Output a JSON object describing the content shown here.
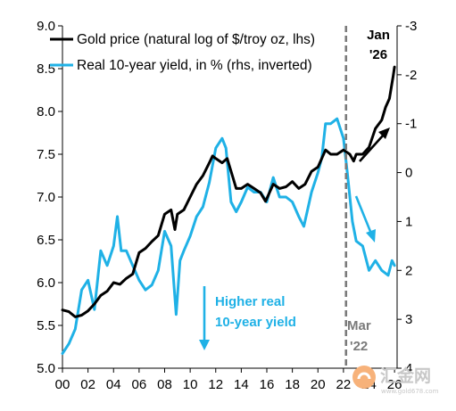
{
  "chart_data": {
    "type": "line",
    "title": "",
    "xlim": [
      2000,
      2026.2
    ],
    "x_tick_labels": [
      "00",
      "02",
      "04",
      "06",
      "08",
      "10",
      "12",
      "14",
      "16",
      "18",
      "20",
      "22",
      "24",
      "26"
    ],
    "y_left": {
      "lim": [
        5.0,
        9.0
      ],
      "ticks": [
        "5.0",
        "5.5",
        "6.0",
        "6.5",
        "7.0",
        "7.5",
        "8.0",
        "8.5",
        "9.0"
      ]
    },
    "y_right": {
      "lim": [
        -3,
        4
      ],
      "inverted": true,
      "ticks": [
        "-3",
        "-2",
        "-1",
        "0",
        "1",
        "2",
        "3",
        "4"
      ]
    },
    "legend_position": "top-center",
    "series": [
      {
        "name": "Gold price (natural log of $/troy oz, lhs)",
        "axis": "left",
        "color": "#000000",
        "points": [
          [
            2000.0,
            5.68
          ],
          [
            2000.5,
            5.66
          ],
          [
            2001.0,
            5.6
          ],
          [
            2001.5,
            5.62
          ],
          [
            2002.0,
            5.67
          ],
          [
            2002.5,
            5.75
          ],
          [
            2003.0,
            5.85
          ],
          [
            2003.5,
            5.9
          ],
          [
            2004.0,
            6.0
          ],
          [
            2004.5,
            5.98
          ],
          [
            2005.0,
            6.05
          ],
          [
            2005.5,
            6.1
          ],
          [
            2006.0,
            6.35
          ],
          [
            2006.5,
            6.4
          ],
          [
            2007.0,
            6.48
          ],
          [
            2007.5,
            6.55
          ],
          [
            2008.0,
            6.8
          ],
          [
            2008.5,
            6.85
          ],
          [
            2008.8,
            6.62
          ],
          [
            2009.0,
            6.8
          ],
          [
            2009.5,
            6.85
          ],
          [
            2010.0,
            7.0
          ],
          [
            2010.5,
            7.15
          ],
          [
            2011.0,
            7.25
          ],
          [
            2011.5,
            7.4
          ],
          [
            2011.75,
            7.48
          ],
          [
            2012.0,
            7.45
          ],
          [
            2012.5,
            7.4
          ],
          [
            2012.9,
            7.45
          ],
          [
            2013.3,
            7.25
          ],
          [
            2013.6,
            7.1
          ],
          [
            2014.0,
            7.1
          ],
          [
            2014.5,
            7.15
          ],
          [
            2015.0,
            7.1
          ],
          [
            2015.5,
            7.05
          ],
          [
            2015.9,
            6.95
          ],
          [
            2016.5,
            7.15
          ],
          [
            2017.0,
            7.1
          ],
          [
            2017.5,
            7.12
          ],
          [
            2018.0,
            7.18
          ],
          [
            2018.5,
            7.1
          ],
          [
            2019.0,
            7.15
          ],
          [
            2019.5,
            7.3
          ],
          [
            2020.0,
            7.35
          ],
          [
            2020.6,
            7.55
          ],
          [
            2021.0,
            7.5
          ],
          [
            2021.5,
            7.5
          ],
          [
            2022.0,
            7.55
          ],
          [
            2022.5,
            7.5
          ],
          [
            2022.8,
            7.42
          ],
          [
            2023.0,
            7.5
          ],
          [
            2023.5,
            7.5
          ],
          [
            2024.0,
            7.58
          ],
          [
            2024.5,
            7.8
          ],
          [
            2025.0,
            7.9
          ],
          [
            2025.3,
            8.05
          ],
          [
            2025.6,
            8.15
          ],
          [
            2025.9,
            8.42
          ],
          [
            2026.0,
            8.52
          ]
        ]
      },
      {
        "name": "Real 10-year yield, in % (rhs, inverted)",
        "axis": "right",
        "color": "#1fb1e6",
        "points": [
          [
            2000.0,
            3.7
          ],
          [
            2000.5,
            3.5
          ],
          [
            2001.0,
            3.2
          ],
          [
            2001.5,
            2.4
          ],
          [
            2002.0,
            2.2
          ],
          [
            2002.5,
            2.8
          ],
          [
            2003.0,
            1.6
          ],
          [
            2003.5,
            1.9
          ],
          [
            2004.0,
            1.5
          ],
          [
            2004.3,
            0.9
          ],
          [
            2004.6,
            1.6
          ],
          [
            2005.0,
            1.6
          ],
          [
            2005.5,
            1.9
          ],
          [
            2006.0,
            2.2
          ],
          [
            2006.5,
            2.4
          ],
          [
            2007.0,
            2.3
          ],
          [
            2007.5,
            2.0
          ],
          [
            2008.0,
            1.2
          ],
          [
            2008.5,
            1.5
          ],
          [
            2008.9,
            2.9
          ],
          [
            2009.2,
            1.8
          ],
          [
            2009.5,
            1.6
          ],
          [
            2010.0,
            1.3
          ],
          [
            2010.5,
            0.9
          ],
          [
            2011.0,
            0.7
          ],
          [
            2011.5,
            0.2
          ],
          [
            2012.0,
            -0.5
          ],
          [
            2012.5,
            -0.7
          ],
          [
            2012.8,
            -0.5
          ],
          [
            2013.2,
            0.6
          ],
          [
            2013.6,
            0.8
          ],
          [
            2014.0,
            0.6
          ],
          [
            2014.5,
            0.3
          ],
          [
            2015.0,
            0.4
          ],
          [
            2015.5,
            0.4
          ],
          [
            2016.0,
            0.6
          ],
          [
            2016.5,
            0.1
          ],
          [
            2017.0,
            0.5
          ],
          [
            2017.5,
            0.5
          ],
          [
            2018.0,
            0.6
          ],
          [
            2018.5,
            0.9
          ],
          [
            2018.9,
            1.1
          ],
          [
            2019.5,
            0.4
          ],
          [
            2020.0,
            0.0
          ],
          [
            2020.3,
            -0.3
          ],
          [
            2020.6,
            -1.0
          ],
          [
            2021.0,
            -1.0
          ],
          [
            2021.5,
            -1.1
          ],
          [
            2022.0,
            -0.7
          ],
          [
            2022.3,
            0.0
          ],
          [
            2022.7,
            1.0
          ],
          [
            2023.0,
            1.4
          ],
          [
            2023.5,
            1.5
          ],
          [
            2024.0,
            2.0
          ],
          [
            2024.5,
            1.8
          ],
          [
            2025.0,
            2.0
          ],
          [
            2025.5,
            2.1
          ],
          [
            2025.8,
            1.8
          ],
          [
            2026.0,
            1.9
          ]
        ]
      }
    ],
    "vline": {
      "x": 2022.2,
      "label_line1": "Mar",
      "label_line2": "'22",
      "color": "#7a7a7a"
    },
    "annotations": [
      {
        "id": "end-label",
        "line1": "Jan",
        "line2": "'26"
      },
      {
        "id": "yield-note",
        "line1": "Higher real",
        "line2": "10-year yield"
      }
    ]
  },
  "watermark": {
    "label": "汇金网",
    "sub": "www.gold678.com"
  }
}
